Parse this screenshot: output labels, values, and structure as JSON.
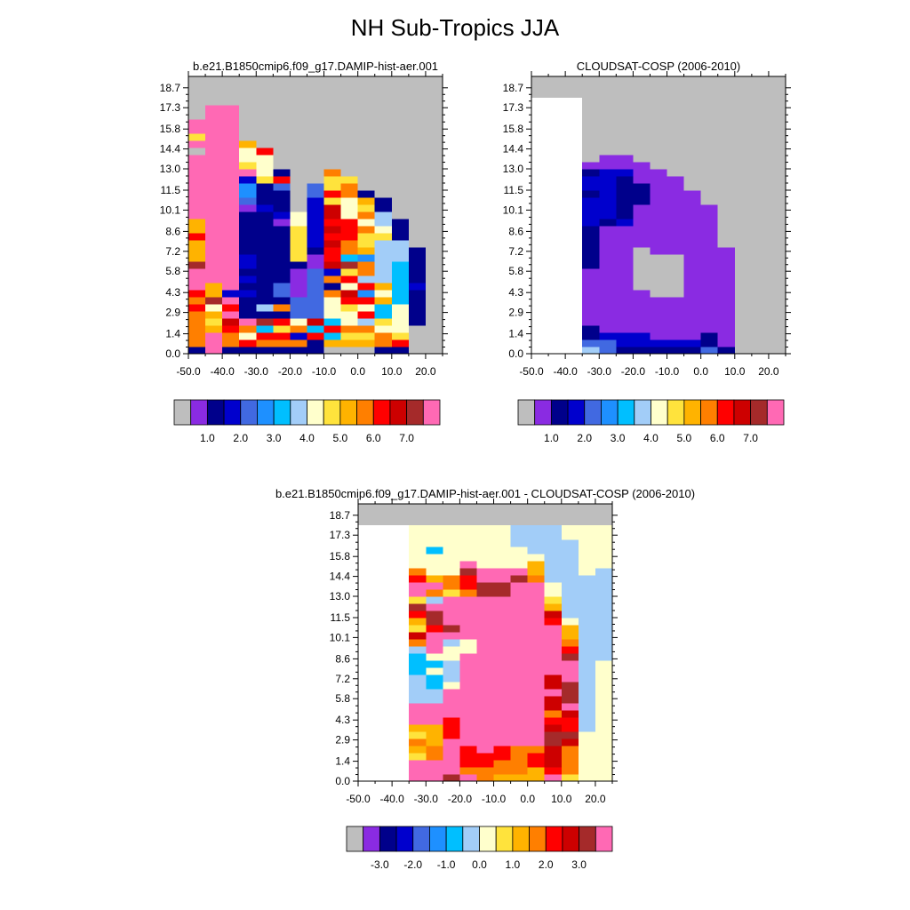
{
  "title": "NH Sub-Tropics JJA",
  "colors": {
    "palette": [
      "#BEBEBE",
      "#8A2BE2",
      "#00008B",
      "#0000CD",
      "#4169E1",
      "#1E90FF",
      "#00BFFF",
      "#A2CDF8",
      "#FFFFCC",
      "#FFE33C",
      "#FFB300",
      "#FF7F00",
      "#FF0000",
      "#CD0000",
      "#A52A2A",
      "#FF69B4"
    ],
    "frame": "#000000",
    "missing": "#BEBEBE"
  },
  "chart_data": [
    {
      "type": "heatmap",
      "title": "b.e21.B1850cmip6.f09_g17.DAMIP-hist-aer.001",
      "x_tick_labels": [
        "-50.0",
        "-40.0",
        "-30.0",
        "-20.0",
        "-10.0",
        "0.0",
        "10.0",
        "20.0"
      ],
      "y_tick_labels": [
        "0.0",
        "1.4",
        "2.9",
        "4.3",
        "5.8",
        "7.2",
        "8.6",
        "10.1",
        "11.5",
        "13.0",
        "14.4",
        "15.8",
        "17.3",
        "18.7"
      ],
      "xlim": [
        -50,
        25
      ],
      "ylim": [
        0,
        19.5
      ],
      "x_bins_lon": [
        -50,
        -45,
        -40,
        -35,
        -30,
        -25,
        -20,
        -15,
        -10,
        -5,
        0,
        5,
        10,
        15,
        20
      ],
      "y_bins_km": [
        0.5,
        1.0,
        1.5,
        2.0,
        2.5,
        3.0,
        3.5,
        4.0,
        4.5,
        5.0,
        5.5,
        6.0,
        6.5,
        7.0,
        7.5,
        8.0,
        8.5,
        9.0,
        9.5,
        10.0,
        10.5,
        11.0,
        11.5,
        12.0,
        12.5,
        13.0,
        13.5,
        14.0,
        14.5,
        15.0,
        15.5,
        16.0,
        16.5,
        17.0,
        17.5,
        18.0
      ],
      "colorbar_labels": [
        "1.0",
        "2.0",
        "3.0",
        "4.0",
        "5.0",
        "6.0",
        "7.0"
      ],
      "colorbar_label_positions": [
        2,
        4,
        6,
        8,
        10,
        12,
        14
      ],
      "grid": "column strings index palette (0-9 = 0-9, a-f = 10-15); letter x = no data (white); rows bottom to top",
      "columns": [
        "2bbbbbcbcfffeaaacaafffffffff0f9ff0000",
        "fffa9a8eaafffffffffffffffffffffffff00",
        "2bbcdfcf3ffffffffffffffffffffffffff0",
        "2c8bf22232323322222214553f988a0000000",
        "2bc6e27222222222222232229888c00000000",
        "2bc9c2b24422222222132224c2000000000000",
        "2b3b8444111129999988000000000000000000",
        "22c6d4444444112333333344000000000000000",
        "0a6c6888b2b3dccdcdcdd9c99b00000000000000",
        "0a9b889cd8c9e6bbccc888bb90000000000000000",
        "0a9b7c8c5c7bb5a99b8b9a2000000000000000000",
        "2bb8966a8a7777779877220000000000000000000",
        "2c9888866666677722200000000000000000000",
        "0000222223222220000000000000000000000000",
        "0000000000000000000000000000000000000000"
      ]
    },
    {
      "type": "heatmap",
      "title": "CLOUDSAT-COSP (2006-2010)",
      "x_tick_labels": [
        "-50.0",
        "-40.0",
        "-30.0",
        "-20.0",
        "-10.0",
        "0.0",
        "10.0",
        "20.0"
      ],
      "y_tick_labels": [
        "0.0",
        "1.4",
        "2.9",
        "4.3",
        "5.8",
        "7.2",
        "8.6",
        "10.1",
        "11.5",
        "13.0",
        "14.4",
        "15.8",
        "17.3",
        "18.7"
      ],
      "xlim": [
        -50,
        25
      ],
      "ylim": [
        0,
        19.5
      ],
      "x_bins_lon": [
        -50,
        -45,
        -40,
        -35,
        -30,
        -25,
        -20,
        -15,
        -10,
        -5,
        0,
        5,
        10,
        15,
        20
      ],
      "y_bins_km": [
        0.5,
        1.0,
        1.5,
        2.0,
        2.5,
        3.0,
        3.5,
        4.0,
        4.5,
        5.0,
        5.5,
        6.0,
        6.5,
        7.0,
        7.5,
        8.0,
        8.5,
        9.0,
        9.5,
        10.0,
        10.5,
        11.0,
        11.5,
        12.0,
        12.5,
        13.0,
        13.5,
        14.0,
        14.5,
        15.0,
        15.5,
        16.0,
        16.5,
        17.0,
        17.5,
        18.0
      ],
      "colorbar_labels": [
        "1.0",
        "2.0",
        "3.0",
        "4.0",
        "5.0",
        "6.0",
        "7.0"
      ],
      "colorbar_label_positions": [
        2,
        4,
        6,
        8,
        10,
        12,
        14
      ],
      "grid": "column strings index palette (0-9 = 0-9, a-f = 10-15); letter x = no data (white); rows bottom to top",
      "columns": [
        "xxxxxxxxxxxxxxxxxxxxxxxxxxxxxxxxxxxx",
        "xxxxxxxxxxxxxxxxxxxxxxxxxxxxxxxxxxxx",
        "xxxxxxxxxxxxxxxxxxxxxxxxxxxxxxxxxxxx",
        "7422111111112222223333233210000000000",
        "44311111111111111123333333110000000000",
        "233111111111111111322222231100000000000",
        "23311111100000011111122211100000000000",
        "231111110000001111111111110000000000000",
        "2311111100000011111111111000000000000000",
        "2311111111111111111111100000000000000000",
        "4221111111111111111110000000000000000000",
        "21111111111111100000000000000000000000000",
        "0000000000000000000000000000000000000000",
        "0000000000000000000000000000000000000000",
        "0000000000000000000000000000000000000000"
      ]
    },
    {
      "type": "heatmap",
      "title": "b.e21.B1850cmip6.f09_g17.DAMIP-hist-aer.001 - CLOUDSAT-COSP (2006-2010)",
      "x_tick_labels": [
        "-50.0",
        "-40.0",
        "-30.0",
        "-20.0",
        "-10.0",
        "0.0",
        "10.0",
        "20.0"
      ],
      "y_tick_labels": [
        "0.0",
        "1.4",
        "2.9",
        "4.3",
        "5.8",
        "7.2",
        "8.6",
        "10.1",
        "11.5",
        "13.0",
        "14.4",
        "15.8",
        "17.3",
        "18.7"
      ],
      "xlim": [
        -50,
        25
      ],
      "ylim": [
        0,
        19.5
      ],
      "x_bins_lon": [
        -50,
        -45,
        -40,
        -35,
        -30,
        -25,
        -20,
        -15,
        -10,
        -5,
        0,
        5,
        10,
        15,
        20
      ],
      "y_bins_km": [
        0.5,
        1.0,
        1.5,
        2.0,
        2.5,
        3.0,
        3.5,
        4.0,
        4.5,
        5.0,
        5.5,
        6.0,
        6.5,
        7.0,
        7.5,
        8.0,
        8.5,
        9.0,
        9.5,
        10.0,
        10.5,
        11.0,
        11.5,
        12.0,
        12.5,
        13.0,
        13.5,
        14.0,
        14.5,
        15.0,
        15.5,
        16.0,
        16.5,
        17.0,
        17.5,
        18.0
      ],
      "colorbar_labels": [
        "-3.0",
        "-2.0",
        "-1.0",
        "0.0",
        "1.0",
        "2.0",
        "3.0"
      ],
      "colorbar_label_positions": [
        2,
        4,
        6,
        8,
        10,
        12,
        14
      ],
      "grid": "column strings index palette (0-9 = 0-9, a-f = 10-15); letter x = no data (white); rows bottom to top",
      "columns": [
        "xxxxxxxxxxxxxxxxxxxxxxxxxxxxxxxxxxxx",
        "xxxxxxxxxxxxxxxxxxxxxxxxxxxxxxxxxxxx",
        "xxxxxxxxxxxxxxxxxxxxxxxxxxxxxxxxxxxx",
        "fff9ab9afff77776667bd9ace9ffcb8888888",
        "fffbbaaafff7766868fffceef7bfa8886888",
        "efffffcccffff8777887feffff9bb88888888",
        "fbcccfffffffffffff88ffffffbccef888888",
        "bbccffffffffffffffffffffffeeff8888888",
        "abbccfffffffffffffffffffffeeff8888888",
        "abbbbfffffffffffffffffffffffef8887777",
        "aaccbfffffffffffffffffffffffbaa877777",
        "fcdddeedcbddfddfffffffcda988777777777",
        "9bbbbdeccdfeeefffecbaa87777777777788888",
        "8888888777777777777777777777788888888888",
        "88888888888888888777777777777788888888888"
      ]
    }
  ]
}
